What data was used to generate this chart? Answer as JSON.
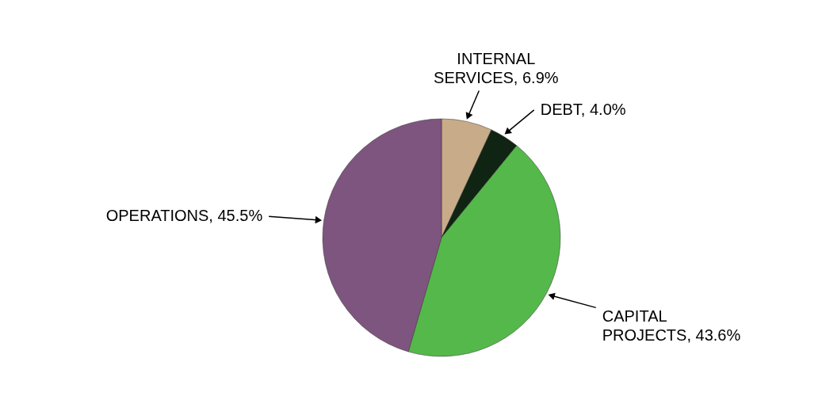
{
  "chart_data": {
    "type": "pie",
    "categories": [
      "INTERNAL SERVICES",
      "DEBT",
      "CAPITAL PROJECTS",
      "OPERATIONS"
    ],
    "value_labels": [
      "6.9%",
      "4.0%",
      "43.6%",
      "45.5%"
    ],
    "values": [
      6.9,
      4.0,
      43.6,
      45.5
    ],
    "colors": [
      "#c8ab88",
      "#0f2412",
      "#55b84a",
      "#7e557e"
    ]
  }
}
